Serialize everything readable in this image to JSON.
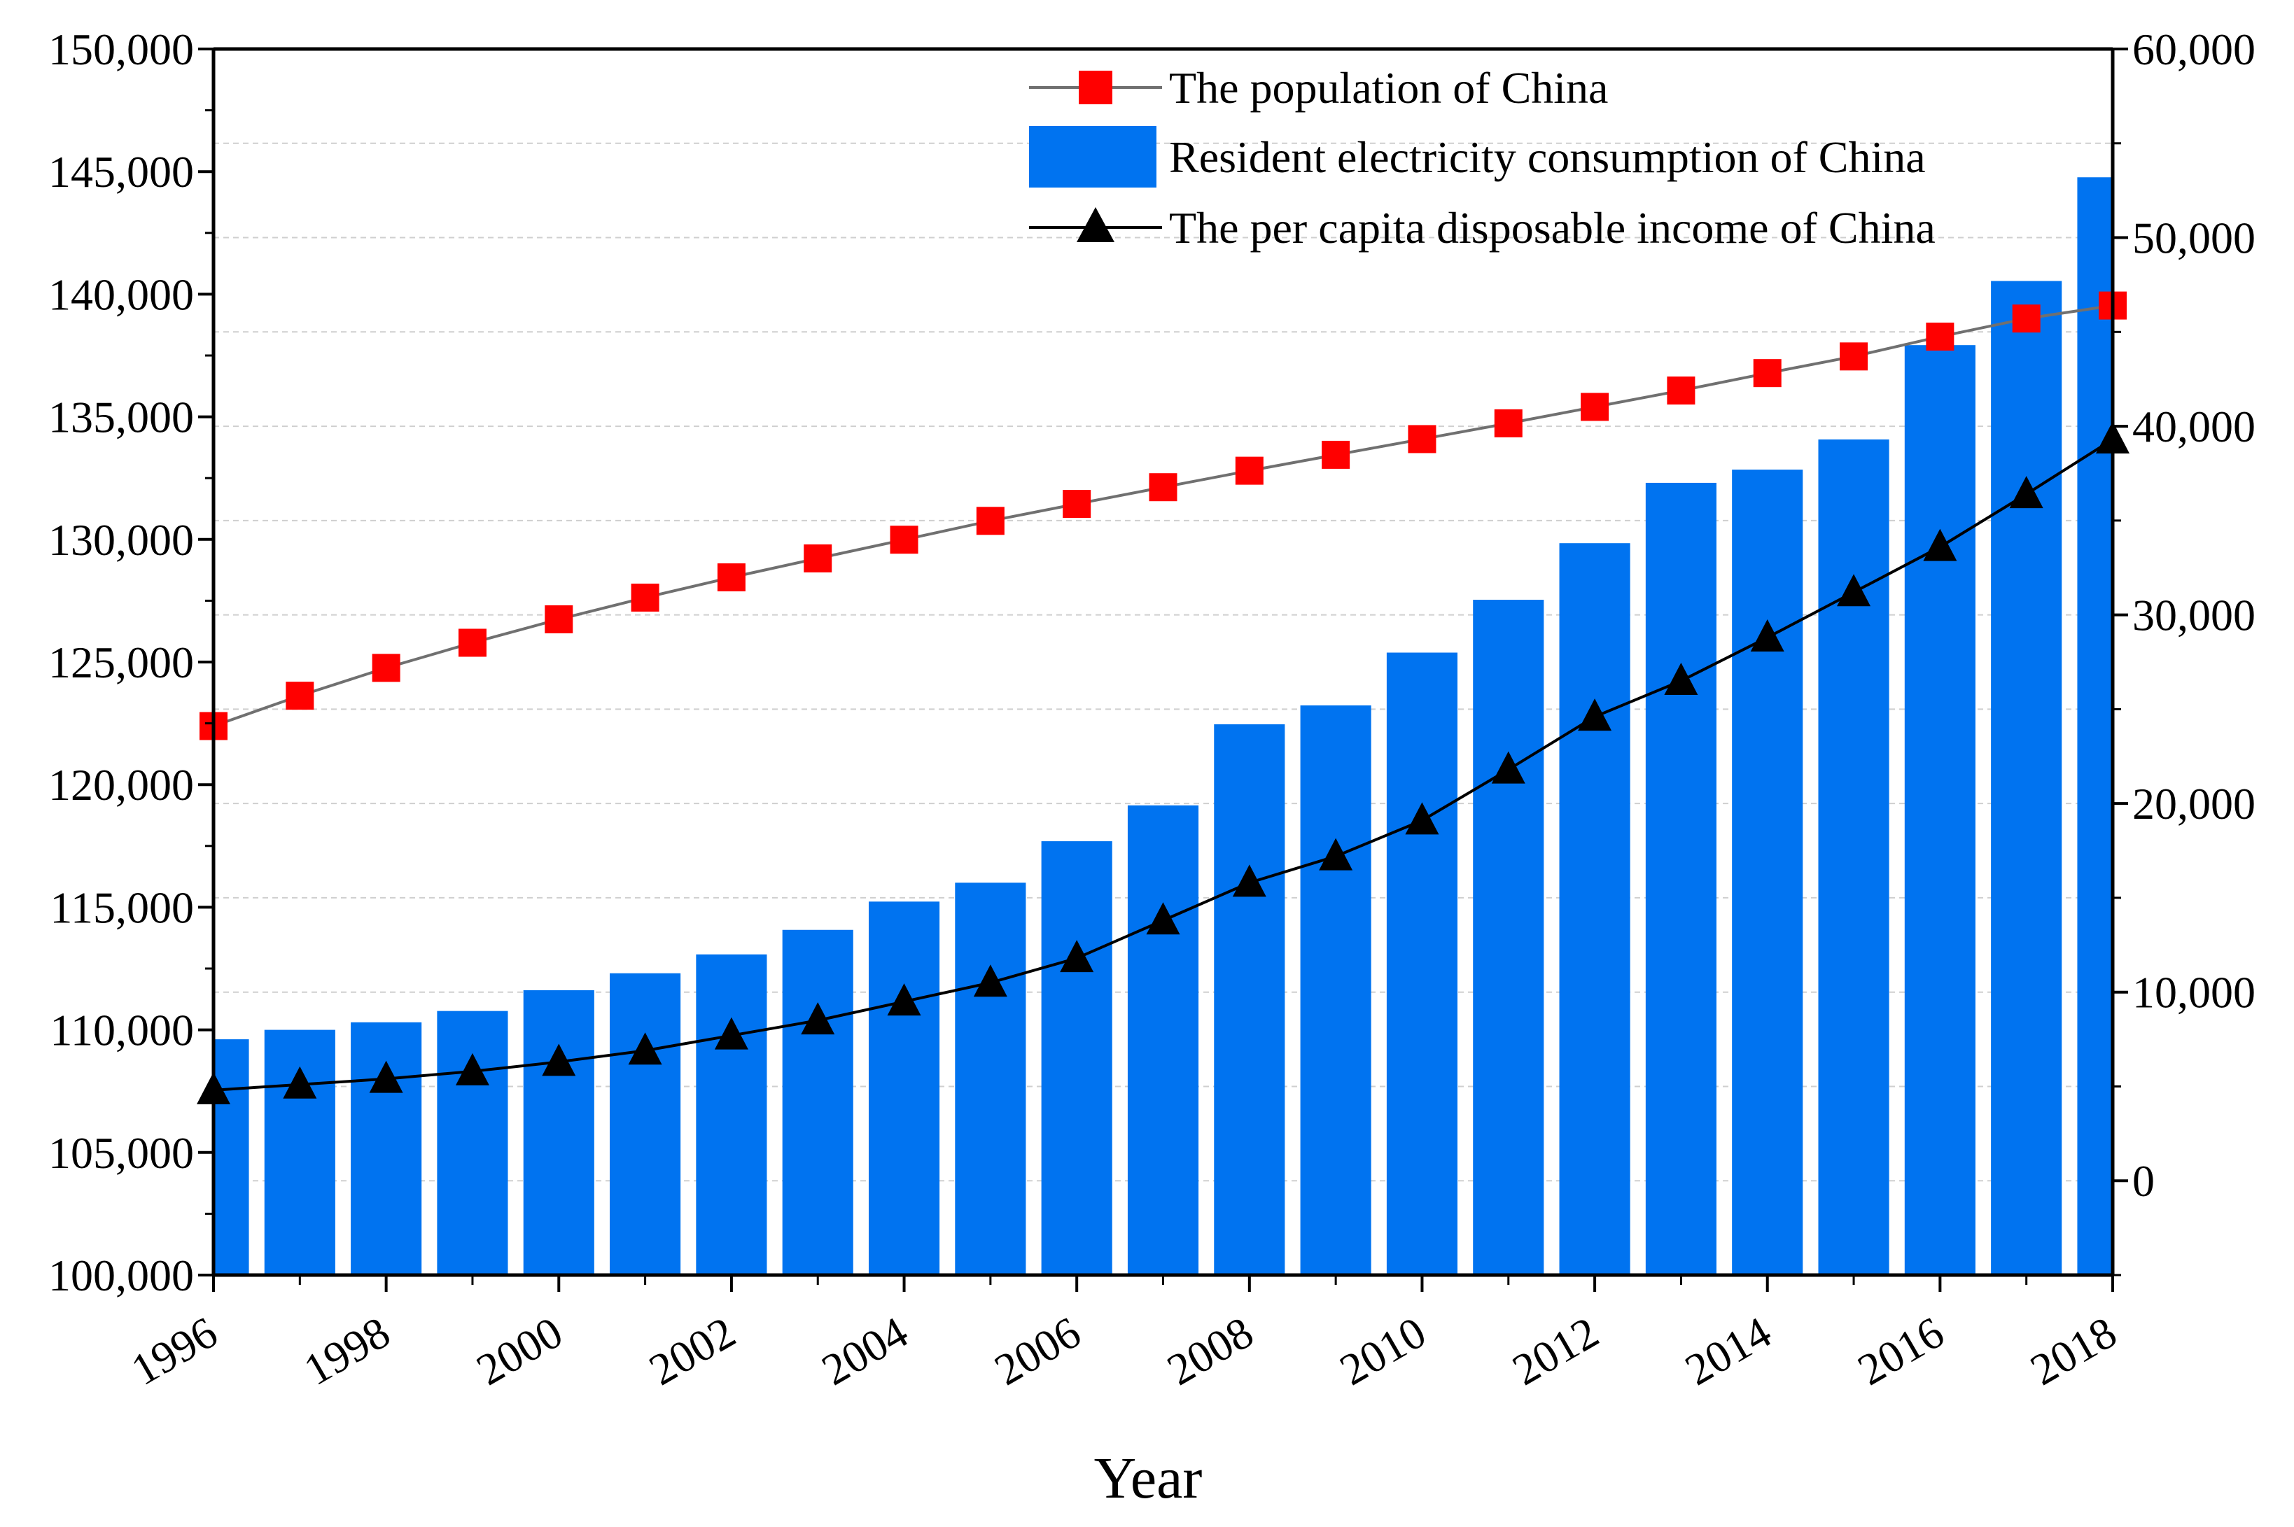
{
  "chart_data": {
    "type": "bar",
    "x": [
      1996,
      1997,
      1998,
      1999,
      2000,
      2001,
      2002,
      2003,
      2004,
      2005,
      2006,
      2007,
      2008,
      2009,
      2010,
      2011,
      2012,
      2013,
      2014,
      2015,
      2016,
      2017,
      2018
    ],
    "xticks": [
      "1996",
      "1998",
      "2000",
      "2002",
      "2004",
      "2006",
      "2008",
      "2010",
      "2012",
      "2014",
      "2016",
      "2018"
    ],
    "xlabel": "Year",
    "y_left": {
      "lim": [
        100000,
        150000
      ],
      "ticks": [
        "100,000",
        "105,000",
        "110,000",
        "115,000",
        "120,000",
        "125,000",
        "130,000",
        "135,000",
        "140,000",
        "145,000",
        "150,000"
      ],
      "label": ""
    },
    "y_right": {
      "lim": [
        -5000,
        60000
      ],
      "ticks": [
        "0",
        "10,000",
        "20,000",
        "30,000",
        "40,000",
        "50,000",
        "60,000"
      ],
      "label": ""
    },
    "grid": "horizontal dashed",
    "legend_position": "top-right",
    "series": [
      {
        "name": "The population of China",
        "type": "line",
        "axis": "left",
        "marker": "square",
        "color": "#ff0000",
        "line_color": "#707070",
        "values": [
          122389,
          123626,
          124761,
          125786,
          126743,
          127627,
          128453,
          129227,
          129988,
          130756,
          131448,
          132129,
          132802,
          133450,
          134091,
          134735,
          135404,
          136072,
          136782,
          137462,
          138271,
          139008,
          139538
        ]
      },
      {
        "name": "Resident electricity consumption of China",
        "type": "bar",
        "axis": "right",
        "color": "#0073f0",
        "values": [
          7500,
          8000,
          8400,
          9000,
          10100,
          11000,
          12000,
          13300,
          14800,
          15800,
          18000,
          19900,
          24200,
          25200,
          28000,
          30800,
          33800,
          37000,
          37700,
          39300,
          44300,
          47700,
          53200
        ]
      },
      {
        "name": "The per capita disposable income of China",
        "type": "line",
        "axis": "right",
        "marker": "triangle",
        "color": "#000000",
        "line_color": "#000000",
        "values": [
          4800,
          5100,
          5400,
          5800,
          6300,
          6900,
          7700,
          8500,
          9500,
          10500,
          11800,
          13800,
          15800,
          17200,
          19100,
          21800,
          24600,
          26500,
          28800,
          31200,
          33600,
          36400,
          39300
        ]
      }
    ]
  }
}
